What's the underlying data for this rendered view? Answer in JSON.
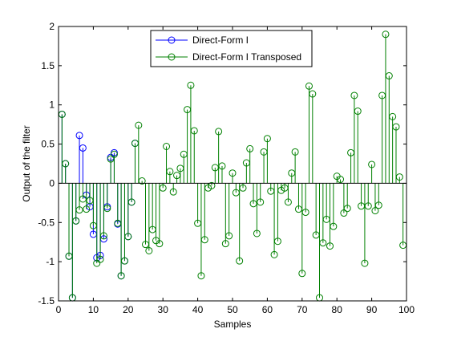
{
  "chart_data": {
    "type": "stem",
    "xlabel": "Samples",
    "ylabel": "Output of the filter",
    "xlim": [
      0,
      100
    ],
    "ylim": [
      -1.5,
      2
    ],
    "xticks": [
      "0",
      "10",
      "20",
      "30",
      "40",
      "50",
      "60",
      "70",
      "80",
      "90",
      "100"
    ],
    "yticks": [
      "-1.5",
      "-1",
      "-0.5",
      "0",
      "0.5",
      "1",
      "1.5",
      "2"
    ],
    "legend_position": "top-center",
    "grid": false,
    "series": [
      {
        "name": "Direct-Form I",
        "color": "#0000ff",
        "x": [
          1,
          2,
          3,
          4,
          5,
          6,
          7,
          8,
          9,
          10,
          11,
          12,
          13,
          14,
          15,
          16,
          17,
          18,
          19,
          20,
          21,
          22
        ],
        "y": [
          0.88,
          0.25,
          -0.93,
          -1.46,
          -0.48,
          0.61,
          0.45,
          -0.15,
          -0.3,
          -0.65,
          -0.95,
          -0.92,
          -0.71,
          -0.3,
          0.33,
          0.39,
          -0.52,
          -1.18,
          -0.99,
          -0.68,
          -0.24,
          0.51
        ]
      },
      {
        "name": "Direct-Form I Transposed",
        "color": "#008000",
        "x": [
          1,
          2,
          3,
          4,
          5,
          6,
          7,
          8,
          9,
          10,
          11,
          12,
          13,
          14,
          15,
          16,
          17,
          18,
          19,
          20,
          21,
          22,
          23,
          24,
          25,
          26,
          27,
          28,
          29,
          30,
          31,
          32,
          33,
          34,
          35,
          36,
          37,
          38,
          39,
          40,
          41,
          42,
          43,
          44,
          45,
          46,
          47,
          48,
          49,
          50,
          51,
          52,
          53,
          54,
          55,
          56,
          57,
          58,
          59,
          60,
          61,
          62,
          63,
          64,
          65,
          66,
          67,
          68,
          69,
          70,
          71,
          72,
          73,
          74,
          75,
          76,
          77,
          78,
          79,
          80,
          81,
          82,
          83,
          84,
          85,
          86,
          87,
          88,
          89,
          90,
          91,
          92,
          93,
          94,
          95,
          96,
          97,
          98,
          99
        ],
        "y": [
          0.88,
          0.25,
          -0.93,
          -1.46,
          -0.48,
          -0.34,
          -0.2,
          -0.33,
          -0.22,
          -0.54,
          -1.02,
          -0.97,
          -0.67,
          -0.32,
          0.31,
          0.37,
          -0.51,
          -1.18,
          -0.99,
          -0.68,
          -0.24,
          0.51,
          0.74,
          0.03,
          -0.78,
          -0.86,
          -0.59,
          -0.73,
          -0.77,
          -0.06,
          0.47,
          0.15,
          -0.11,
          0.1,
          0.19,
          0.37,
          0.94,
          1.25,
          0.67,
          -0.51,
          -1.18,
          -0.72,
          -0.06,
          -0.03,
          0.2,
          0.66,
          0.22,
          -0.77,
          -0.67,
          0.13,
          -0.12,
          -0.99,
          -0.06,
          0.26,
          0.44,
          -0.26,
          -0.64,
          -0.24,
          0.4,
          0.57,
          -0.1,
          -0.91,
          -0.74,
          -0.09,
          -0.06,
          -0.24,
          0.13,
          0.4,
          -0.33,
          -1.15,
          -0.37,
          1.24,
          1.14,
          -0.66,
          -1.46,
          -0.76,
          -0.46,
          -0.8,
          -0.55,
          0.09,
          0.05,
          -0.38,
          -0.32,
          0.39,
          1.12,
          0.92,
          -0.29,
          -1.02,
          -0.29,
          0.24,
          -0.35,
          -0.28,
          1.12,
          1.9,
          1.37,
          0.85,
          0.72,
          0.08,
          -0.79
        ]
      }
    ]
  }
}
